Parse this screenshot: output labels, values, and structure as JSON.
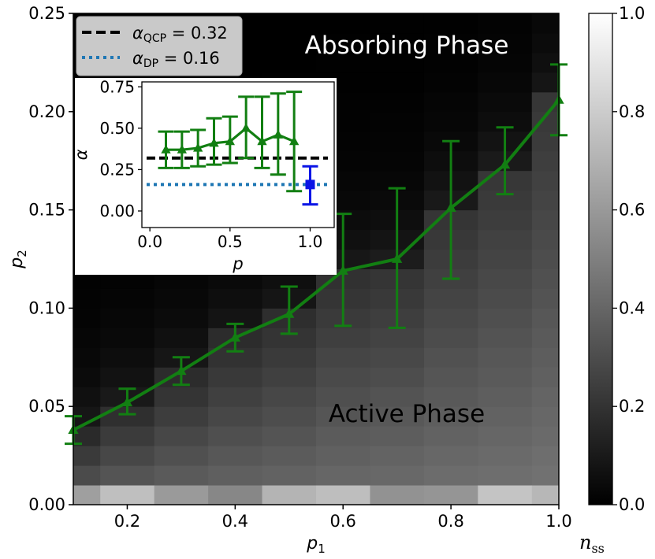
{
  "chart_data": [
    {
      "type": "heatmap+line",
      "title": "",
      "xlabel": "p_1",
      "ylabel": "p_2",
      "xlim": [
        0.1,
        1.0
      ],
      "ylim": [
        0.0,
        0.25
      ],
      "xticks": [
        0.2,
        0.4,
        0.6,
        0.8,
        1.0
      ],
      "xtick_labels": [
        "0.2",
        "0.4",
        "0.6",
        "0.8",
        "1.0"
      ],
      "yticks": [
        0.0,
        0.05,
        0.1,
        0.15,
        0.2,
        0.25
      ],
      "ytick_labels": [
        "0.00",
        "0.05",
        "0.10",
        "0.15",
        "0.20",
        "0.25"
      ],
      "annotations": [
        "Absorbing Phase",
        "Active Phase"
      ],
      "legend": {
        "position": "top-left",
        "entries": [
          {
            "label_main": "α",
            "label_sub": "QCP",
            "label_rest": " = 0.32",
            "style": "dashed",
            "color": "#000000"
          },
          {
            "label_main": "α",
            "label_sub": "DP",
            "label_rest": " = 0.16",
            "style": "dotted",
            "color": "#1f77b4"
          }
        ]
      },
      "series": [
        {
          "color": "#127f12",
          "marker": "triangle",
          "x": [
            0.1,
            0.2,
            0.3,
            0.4,
            0.5,
            0.6,
            0.7,
            0.8,
            0.9,
            1.0
          ],
          "y": [
            0.038,
            0.052,
            0.068,
            0.085,
            0.097,
            0.119,
            0.125,
            0.151,
            0.173,
            0.206
          ],
          "err_low": [
            0.031,
            0.046,
            0.061,
            0.078,
            0.087,
            0.091,
            0.09,
            0.115,
            0.158,
            0.188
          ],
          "err_high": [
            0.045,
            0.059,
            0.075,
            0.092,
            0.111,
            0.148,
            0.161,
            0.185,
            0.192,
            0.224
          ]
        }
      ],
      "heatmap": {
        "grid": "on",
        "x_bins": [
          0.1,
          0.2,
          0.3,
          0.4,
          0.5,
          0.6,
          0.7,
          0.8,
          0.9,
          1.0
        ],
        "colormap": "gray",
        "colorbar": {
          "label": "n_ss",
          "range": [
            0.0,
            1.0
          ],
          "ticks": [
            0.0,
            0.2,
            0.4,
            0.6,
            0.8,
            1.0
          ],
          "tick_labels": [
            "0.0",
            "0.2",
            "0.4",
            "0.6",
            "0.8",
            "1.0"
          ]
        }
      }
    },
    {
      "type": "line",
      "inset": true,
      "xlabel": "p",
      "ylabel": "α",
      "xlim": [
        -0.05,
        1.15
      ],
      "ylim": [
        -0.1,
        0.78
      ],
      "xticks": [
        0.0,
        0.5,
        1.0
      ],
      "xtick_labels": [
        "0.0",
        "0.5",
        "1.0"
      ],
      "yticks": [
        0.0,
        0.25,
        0.5,
        0.75
      ],
      "ytick_labels": [
        "0.00",
        "0.25",
        "0.50",
        "0.75"
      ],
      "reference_lines": [
        {
          "y": 0.32,
          "style": "dashed",
          "color": "#000000"
        },
        {
          "y": 0.16,
          "style": "dotted",
          "color": "#1f77b4"
        }
      ],
      "series": [
        {
          "color": "#127f12",
          "marker": "triangle",
          "x": [
            0.1,
            0.2,
            0.3,
            0.4,
            0.5,
            0.6,
            0.7,
            0.8,
            0.9
          ],
          "y": [
            0.37,
            0.37,
            0.38,
            0.41,
            0.42,
            0.5,
            0.42,
            0.46,
            0.42
          ],
          "err_low": [
            0.26,
            0.26,
            0.27,
            0.28,
            0.29,
            0.32,
            0.26,
            0.22,
            0.12
          ],
          "err_high": [
            0.48,
            0.48,
            0.49,
            0.56,
            0.57,
            0.69,
            0.69,
            0.71,
            0.72
          ]
        },
        {
          "color": "#0a14e6",
          "marker": "square",
          "x": [
            1.0
          ],
          "y": [
            0.16
          ],
          "err_low": [
            0.04
          ],
          "err_high": [
            0.27
          ]
        }
      ]
    }
  ]
}
